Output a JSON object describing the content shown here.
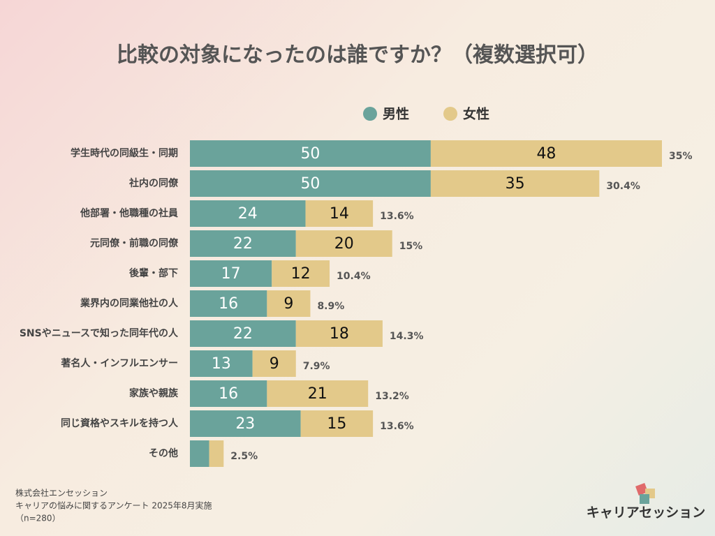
{
  "chart_data": {
    "type": "stacked-bar-horizontal",
    "title": "比較の対象になったのは誰ですか？（複数選択可）",
    "categories": [
      "学生時代の同級生・同期",
      "社内の同僚",
      "他部署・他職種の社員",
      "元同僚・前職の同僚",
      "後輩・部下",
      "業界内の同業他社の人",
      "SNSやニュースで知った同年代の人",
      "著名人・インフルエンサー",
      "家族や親族",
      "同じ資格やスキルを持つ人",
      "その他"
    ],
    "series": [
      {
        "name": "男性",
        "color": "#6aa39b",
        "values": [
          50,
          50,
          24,
          22,
          17,
          16,
          22,
          13,
          16,
          23,
          4
        ]
      },
      {
        "name": "女性",
        "color": "#e3c98a",
        "values": [
          48,
          35,
          14,
          20,
          12,
          9,
          18,
          9,
          21,
          15,
          3
        ]
      }
    ],
    "total_percent": {
      "values": [
        35,
        30.4,
        13.6,
        15,
        10.4,
        8.9,
        14.3,
        7.9,
        13.2,
        13.6,
        2.5
      ],
      "value_labels": [
        "35%",
        "30.4%",
        "13.6%",
        "15%",
        "10.4%",
        "8.9%",
        "14.3%",
        "7.9%",
        "13.2%",
        "13.6%",
        "2.5%"
      ]
    },
    "footer": [
      "株式会社エンセッション",
      "キャリアの悩みに関するアンケート 2025年8月実施",
      "（n=280）"
    ],
    "logo": "キャリアセッション"
  }
}
